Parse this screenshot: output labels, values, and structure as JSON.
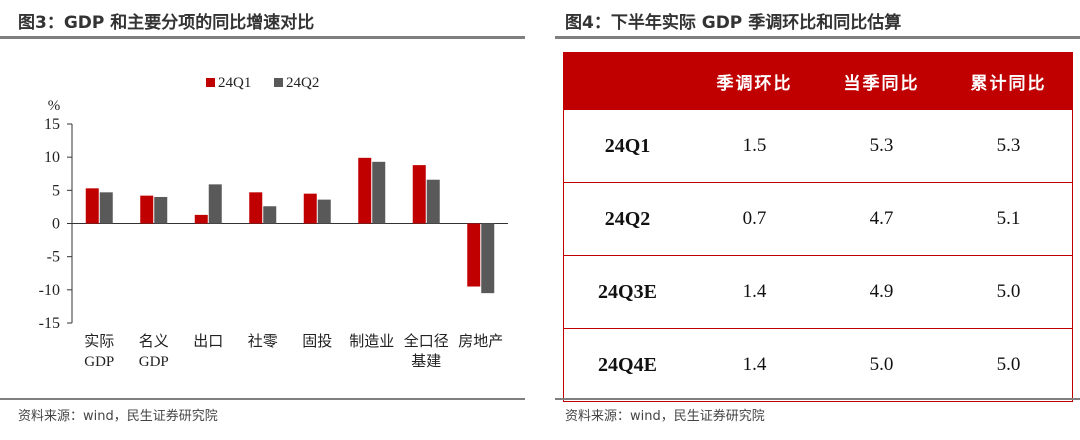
{
  "left": {
    "title": "图3：GDP 和主要分项的同比增速对比",
    "source": "资料来源：wind，民生证券研究院"
  },
  "right": {
    "title": "图4：下半年实际 GDP 季调环比和同比估算",
    "source": "资料来源：wind，民生证券研究院",
    "headers": [
      "",
      "季调环比",
      "当季同比",
      "累计同比"
    ],
    "rows": [
      [
        "24Q1",
        "1.5",
        "5.3",
        "5.3"
      ],
      [
        "24Q2",
        "0.7",
        "4.7",
        "5.1"
      ],
      [
        "24Q3E",
        "1.4",
        "4.9",
        "5.0"
      ],
      [
        "24Q4E",
        "1.4",
        "5.0",
        "5.0"
      ]
    ]
  },
  "chart_data": [
    {
      "type": "bar",
      "title": "",
      "xlabel": "",
      "ylabel": "%",
      "ylim": [
        -15,
        15
      ],
      "yticks": [
        15,
        10,
        5,
        0,
        -5,
        -10,
        -15
      ],
      "categories": [
        [
          "实际",
          "GDP"
        ],
        [
          "名义",
          "GDP"
        ],
        [
          "出口"
        ],
        [
          "社零"
        ],
        [
          "固投"
        ],
        [
          "制造业"
        ],
        [
          "全口径",
          "基建"
        ],
        [
          "房地产"
        ]
      ],
      "series": [
        {
          "name": "24Q1",
          "color": "#c00000",
          "values": [
            5.3,
            4.2,
            1.3,
            4.7,
            4.5,
            9.9,
            8.8,
            -9.5
          ]
        },
        {
          "name": "24Q2",
          "color": "#595959",
          "values": [
            4.7,
            4.0,
            5.9,
            2.6,
            3.6,
            9.3,
            6.6,
            -10.5
          ]
        }
      ],
      "legend": "top-center",
      "grid": false
    },
    {
      "type": "table",
      "columns": [
        "季调环比",
        "当季同比",
        "累计同比"
      ],
      "rows": [
        {
          "label": "24Q1",
          "values": [
            1.5,
            5.3,
            5.3
          ]
        },
        {
          "label": "24Q2",
          "values": [
            0.7,
            4.7,
            5.1
          ]
        },
        {
          "label": "24Q3E",
          "values": [
            1.4,
            4.9,
            5.0
          ]
        },
        {
          "label": "24Q4E",
          "values": [
            1.4,
            5.0,
            5.0
          ]
        }
      ]
    }
  ]
}
